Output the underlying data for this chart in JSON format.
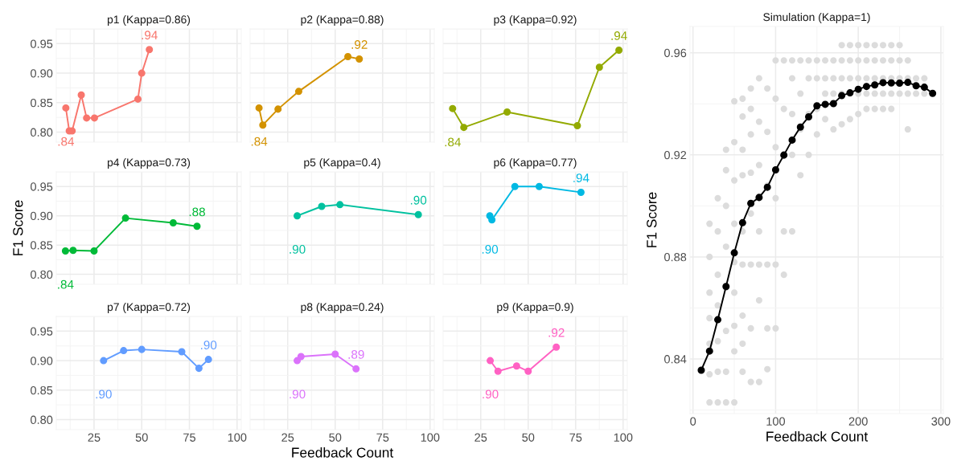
{
  "chart_data": [
    {
      "type": "line",
      "title": "p1 (Kappa=0.86)",
      "x": [
        10.2,
        12.0,
        13.5,
        18.3,
        21.1,
        25.2,
        48.0,
        50.0,
        54.0
      ],
      "series": [
        {
          "color": "#f8766d",
          "values": [
            0.841,
            0.802,
            0.802,
            0.863,
            0.824,
            0.824,
            0.856,
            0.9,
            0.94
          ]
        }
      ],
      "annotations": [
        {
          "text": ".84",
          "x": 10.2,
          "y": 0.841
        },
        {
          "text": ".94",
          "x": 54.0,
          "y": 0.94
        }
      ],
      "xlim": [
        5.2,
        102.2
      ],
      "ylim": [
        0.783,
        0.975
      ],
      "xticks": [
        25,
        50,
        75,
        100
      ],
      "yticks": [
        {
          "value": 0.8,
          "label": "0.80"
        },
        {
          "value": 0.85,
          "label": "0.85"
        },
        {
          "value": 0.9,
          "label": "0.90"
        },
        {
          "value": 0.95,
          "label": "0.95"
        }
      ],
      "grid": true,
      "marker": "circle",
      "tick_labels": "y"
    },
    {
      "type": "line",
      "title": "p2 (Kappa=0.88)",
      "x": [
        9.9,
        11.9,
        19.9,
        30.8,
        56.7,
        62.7
      ],
      "series": [
        {
          "color": "#d39200",
          "values": [
            0.841,
            0.812,
            0.839,
            0.869,
            0.928,
            0.924
          ]
        }
      ],
      "annotations": [
        {
          "text": ".84",
          "x": 9.9,
          "y": 0.841
        },
        {
          "text": ".92",
          "x": 62.7,
          "y": 0.924
        }
      ],
      "xlim": [
        5.2,
        102.2
      ],
      "ylim": [
        0.783,
        0.975
      ],
      "xticks": [
        25,
        50,
        75,
        100
      ],
      "yticks": [
        0.8,
        0.85,
        0.9,
        0.95
      ],
      "grid": true,
      "marker": "circle",
      "tick_labels": false
    },
    {
      "type": "line",
      "title": "p3 (Kappa=0.92)",
      "x": [
        10.2,
        16.1,
        38.9,
        75.9,
        87.5,
        97.8
      ],
      "series": [
        {
          "color": "#93aa00",
          "values": [
            0.84,
            0.808,
            0.834,
            0.811,
            0.91,
            0.939
          ]
        }
      ],
      "annotations": [
        {
          "text": ".84",
          "x": 10.2,
          "y": 0.84
        },
        {
          "text": ".94",
          "x": 97.8,
          "y": 0.939
        }
      ],
      "xlim": [
        5.2,
        102.2
      ],
      "ylim": [
        0.783,
        0.975
      ],
      "xticks": [
        25,
        50,
        75,
        100
      ],
      "yticks": [
        0.8,
        0.85,
        0.9,
        0.95
      ],
      "grid": true,
      "marker": "circle",
      "tick_labels": false
    },
    {
      "type": "line",
      "title": "p4 (Kappa=0.73)",
      "ylabel": "F1 Score",
      "x": [
        10.0,
        14.0,
        25.0,
        41.5,
        66.5,
        79.0
      ],
      "series": [
        {
          "color": "#00ba38",
          "values": [
            0.84,
            0.841,
            0.84,
            0.896,
            0.888,
            0.882
          ]
        }
      ],
      "annotations": [
        {
          "text": ".84",
          "x": 10.0,
          "y": 0.84
        },
        {
          "text": ".88",
          "x": 79.0,
          "y": 0.882
        }
      ],
      "xlim": [
        5.2,
        102.2
      ],
      "ylim": [
        0.783,
        0.975
      ],
      "xticks": [
        25,
        50,
        75,
        100
      ],
      "yticks": [
        {
          "value": 0.8,
          "label": "0.80"
        },
        {
          "value": 0.85,
          "label": "0.85"
        },
        {
          "value": 0.9,
          "label": "0.90"
        },
        {
          "value": 0.95,
          "label": "0.95"
        }
      ],
      "grid": true,
      "marker": "circle",
      "tick_labels": "y"
    },
    {
      "type": "line",
      "title": "p5 (Kappa=0.4)",
      "x": [
        30.0,
        42.9,
        52.5,
        93.8
      ],
      "series": [
        {
          "color": "#00c19f",
          "values": [
            0.9,
            0.916,
            0.919,
            0.902
          ]
        }
      ],
      "annotations": [
        {
          "text": ".90",
          "x": 30.0,
          "y": 0.9
        },
        {
          "text": ".90",
          "x": 93.8,
          "y": 0.902
        }
      ],
      "xlim": [
        5.2,
        102.2
      ],
      "ylim": [
        0.783,
        0.975
      ],
      "xticks": [
        25,
        50,
        75,
        100
      ],
      "yticks": [
        0.8,
        0.85,
        0.9,
        0.95
      ],
      "grid": true,
      "marker": "circle",
      "tick_labels": false
    },
    {
      "type": "line",
      "title": "p6 (Kappa=0.77)",
      "x": [
        29.8,
        30.9,
        43.0,
        55.8,
        77.8
      ],
      "series": [
        {
          "color": "#00b9e3",
          "values": [
            0.9,
            0.893,
            0.95,
            0.95,
            0.94
          ]
        }
      ],
      "annotations": [
        {
          "text": ".90",
          "x": 29.8,
          "y": 0.9
        },
        {
          "text": ".94",
          "x": 77.8,
          "y": 0.94
        }
      ],
      "xlim": [
        5.2,
        102.2
      ],
      "ylim": [
        0.783,
        0.975
      ],
      "xticks": [
        25,
        50,
        75,
        100
      ],
      "yticks": [
        0.8,
        0.85,
        0.9,
        0.95
      ],
      "grid": true,
      "marker": "circle",
      "tick_labels": false
    },
    {
      "type": "line",
      "title": "p7 (Kappa=0.72)",
      "x": [
        30.0,
        40.5,
        50.0,
        71.0,
        80.0,
        85.0
      ],
      "series": [
        {
          "color": "#619cff",
          "values": [
            0.9,
            0.917,
            0.919,
            0.915,
            0.887,
            0.902
          ]
        }
      ],
      "annotations": [
        {
          "text": ".90",
          "x": 30.0,
          "y": 0.9
        },
        {
          "text": ".90",
          "x": 85.0,
          "y": 0.902
        }
      ],
      "xlim": [
        5.2,
        102.2
      ],
      "ylim": [
        0.783,
        0.975
      ],
      "xticks": [
        25,
        50,
        75,
        100
      ],
      "yticks": [
        {
          "value": 0.8,
          "label": "0.80"
        },
        {
          "value": 0.85,
          "label": "0.85"
        },
        {
          "value": 0.9,
          "label": "0.90"
        },
        {
          "value": 0.95,
          "label": "0.95"
        }
      ],
      "grid": true,
      "marker": "circle"
    },
    {
      "type": "line",
      "title": "p8 (Kappa=0.24)",
      "xlabel": "Feedback Count",
      "x": [
        30.0,
        32.0,
        50.0,
        61.0
      ],
      "series": [
        {
          "color": "#db72fb",
          "values": [
            0.9,
            0.907,
            0.911,
            0.886
          ]
        }
      ],
      "annotations": [
        {
          "text": ".90",
          "x": 30.0,
          "y": 0.9
        },
        {
          "text": ".89",
          "x": 61.0,
          "y": 0.886
        }
      ],
      "xlim": [
        5.2,
        102.2
      ],
      "ylim": [
        0.783,
        0.975
      ],
      "xticks": [
        25,
        50,
        75,
        100
      ],
      "yticks": [
        0.8,
        0.85,
        0.9,
        0.95
      ],
      "grid": true,
      "marker": "circle",
      "tick_labels": "x"
    },
    {
      "type": "line",
      "title": "p9 (Kappa=0.9)",
      "x": [
        30.0,
        34.1,
        43.9,
        50.0,
        64.8
      ],
      "series": [
        {
          "color": "#ff61c3",
          "values": [
            0.9,
            0.882,
            0.891,
            0.882,
            0.923
          ]
        }
      ],
      "annotations": [
        {
          "text": ".90",
          "x": 30.0,
          "y": 0.9
        },
        {
          "text": ".92",
          "x": 64.8,
          "y": 0.923
        }
      ],
      "xlim": [
        5.2,
        102.2
      ],
      "ylim": [
        0.783,
        0.975
      ],
      "xticks": [
        25,
        50,
        75,
        100
      ],
      "yticks": [
        0.8,
        0.85,
        0.9,
        0.95
      ],
      "grid": true,
      "marker": "circle",
      "tick_labels": "x"
    },
    {
      "type": "scatter",
      "title": "Simulation (Kappa=1)",
      "xlabel": "Feedback Count",
      "ylabel": "F1 Score",
      "series": [
        {
          "type": "scatter",
          "color": "#dcdcdc",
          "x": [
            20,
            20,
            20,
            20,
            20,
            20,
            20,
            30,
            30,
            30,
            30,
            30,
            30,
            30,
            40,
            40,
            40,
            40,
            40,
            40,
            40,
            40,
            50,
            50,
            50,
            50,
            50,
            50,
            50,
            50,
            50,
            60,
            60,
            60,
            60,
            60,
            60,
            60,
            60,
            60,
            70,
            70,
            70,
            70,
            70,
            70,
            70,
            70,
            80,
            80,
            80,
            80,
            80,
            80,
            80,
            90,
            90,
            90,
            90,
            90,
            90,
            100,
            100,
            100,
            100,
            100,
            100,
            110,
            110,
            110,
            110,
            120,
            120,
            120,
            120,
            120,
            130,
            130,
            130,
            130,
            140,
            140,
            140,
            140,
            150,
            150,
            150,
            150,
            160,
            160,
            160,
            160,
            170,
            170,
            170,
            170,
            180,
            180,
            180,
            180,
            180,
            190,
            190,
            190,
            190,
            190,
            200,
            200,
            200,
            200,
            200,
            210,
            210,
            210,
            210,
            210,
            220,
            220,
            220,
            220,
            220,
            230,
            230,
            230,
            230,
            230,
            240,
            240,
            240,
            240,
            240,
            250,
            250,
            250,
            250,
            260,
            260,
            260,
            260,
            270,
            270,
            280,
            280
          ],
          "values": [
            0.823,
            0.834,
            0.846,
            0.856,
            0.866,
            0.88,
            0.893,
            0.823,
            0.835,
            0.847,
            0.861,
            0.873,
            0.89,
            0.903,
            0.823,
            0.835,
            0.851,
            0.868,
            0.884,
            0.9,
            0.914,
            0.922,
            0.823,
            0.843,
            0.853,
            0.866,
            0.878,
            0.893,
            0.91,
            0.925,
            0.941,
            0.835,
            0.846,
            0.857,
            0.877,
            0.89,
            0.912,
            0.922,
            0.935,
            0.942,
            0.831,
            0.852,
            0.877,
            0.897,
            0.913,
            0.928,
            0.938,
            0.946,
            0.831,
            0.863,
            0.877,
            0.89,
            0.916,
            0.933,
            0.95,
            0.836,
            0.852,
            0.877,
            0.908,
            0.929,
            0.946,
            0.852,
            0.877,
            0.903,
            0.923,
            0.942,
            0.957,
            0.873,
            0.89,
            0.938,
            0.957,
            0.89,
            0.92,
            0.936,
            0.95,
            0.957,
            0.912,
            0.93,
            0.944,
            0.957,
            0.92,
            0.936,
            0.95,
            0.957,
            0.928,
            0.938,
            0.95,
            0.957,
            0.934,
            0.944,
            0.95,
            0.957,
            0.93,
            0.944,
            0.95,
            0.957,
            0.932,
            0.944,
            0.95,
            0.957,
            0.963,
            0.934,
            0.944,
            0.95,
            0.957,
            0.963,
            0.936,
            0.944,
            0.95,
            0.957,
            0.963,
            0.938,
            0.944,
            0.95,
            0.957,
            0.963,
            0.938,
            0.944,
            0.95,
            0.957,
            0.963,
            0.938,
            0.944,
            0.95,
            0.957,
            0.963,
            0.938,
            0.944,
            0.95,
            0.957,
            0.963,
            0.944,
            0.95,
            0.957,
            0.963,
            0.93,
            0.944,
            0.95,
            0.957,
            0.944,
            0.95,
            0.944,
            0.95
          ]
        },
        {
          "type": "line",
          "color": "#000000",
          "x": [
            10,
            20,
            30,
            40,
            50,
            60,
            70,
            80,
            90,
            100,
            110,
            120,
            130,
            140,
            150,
            160,
            170,
            180,
            190,
            200,
            210,
            220,
            230,
            240,
            250,
            260,
            270,
            280,
            290
          ],
          "values": [
            0.8356,
            0.8431,
            0.8554,
            0.8684,
            0.8816,
            0.8934,
            0.901,
            0.9033,
            0.9073,
            0.9141,
            0.9199,
            0.9258,
            0.9309,
            0.9349,
            0.9392,
            0.9398,
            0.9401,
            0.9432,
            0.9443,
            0.9457,
            0.9468,
            0.9474,
            0.9483,
            0.9482,
            0.9481,
            0.9484,
            0.9471,
            0.9465,
            0.9441
          ]
        }
      ],
      "xlim": [
        -3.6,
        303
      ],
      "ylim": [
        0.8186,
        0.9703
      ],
      "xticks": [
        0,
        100,
        200,
        300
      ],
      "yticks": [
        0.84,
        0.88,
        0.92,
        0.96
      ],
      "grid": true,
      "marker": "circle"
    }
  ]
}
